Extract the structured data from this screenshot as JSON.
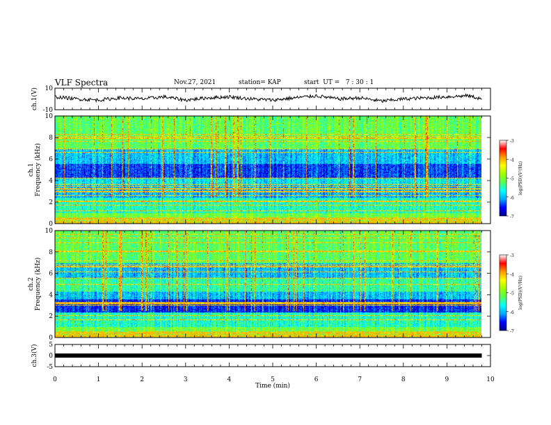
{
  "header": {
    "title": "VLF Spectra",
    "date": "Nov.27, 2021",
    "station": "station= KAP",
    "start": "start  UT =   7 : 30 : 1"
  },
  "colors": {
    "spectrum_scale": [
      "#00008b",
      "#0000ff",
      "#00aaff",
      "#00ffff",
      "#55ff55",
      "#a0ff00",
      "#ffff00",
      "#ff9900",
      "#ff0000",
      "#ffffff"
    ],
    "trace": "#000000",
    "axis": "#000000"
  },
  "chart_data": [
    {
      "type": "line",
      "name": "ch1-waveform",
      "ylabel": "ch.1(V)",
      "ylim": [
        -10,
        10
      ],
      "yticks": [
        "10",
        "-10"
      ],
      "xlim": [
        0,
        10
      ],
      "x": [
        0,
        0.5,
        1,
        1.5,
        2,
        2.5,
        3,
        3.5,
        4,
        4.5,
        5,
        5.5,
        6,
        6.5,
        7,
        7.5,
        8,
        8.5,
        9,
        9.5,
        9.8
      ],
      "y": [
        2,
        0,
        -1,
        1,
        0,
        2,
        -1,
        1,
        2,
        0,
        -1,
        1,
        3,
        0,
        1,
        -2,
        0,
        1,
        2,
        3,
        0
      ]
    },
    {
      "type": "heatmap",
      "name": "ch1-spectrogram",
      "ylabel": "ch.1\nFrequency (kHz)",
      "ylim": [
        0,
        10
      ],
      "yticks": [
        "0",
        "2",
        "4",
        "6",
        "8",
        "10"
      ],
      "xlim": [
        0,
        10
      ],
      "colorbar": {
        "label": "log(PSD)(V²/Hz)",
        "range": [
          -7,
          -3
        ],
        "ticks": [
          "-3",
          "-4",
          "-5",
          "-6",
          "-7"
        ]
      }
    },
    {
      "type": "heatmap",
      "name": "ch2-spectrogram",
      "ylabel": "ch.2\nFrequency (kHz)",
      "ylim": [
        0,
        10
      ],
      "yticks": [
        "0",
        "2",
        "4",
        "6",
        "8",
        "10"
      ],
      "xlim": [
        0,
        10
      ],
      "colorbar": {
        "label": "log(PSD)(V²/Hz)",
        "range": [
          -7,
          -3
        ],
        "ticks": [
          "-3",
          "-4",
          "-5",
          "-6",
          "-7"
        ]
      }
    },
    {
      "type": "line",
      "name": "ch3-signal",
      "ylabel": "ch.3(V)",
      "ylim": [
        -5,
        5
      ],
      "yticks": [
        "5",
        "0",
        "-5"
      ],
      "xlim": [
        0,
        10
      ],
      "x": [
        0,
        9.8
      ],
      "y": [
        0,
        0
      ]
    }
  ],
  "xaxis": {
    "label": "Time (min)",
    "ticks": [
      "0",
      "1",
      "2",
      "3",
      "4",
      "5",
      "6",
      "7",
      "8",
      "9",
      "10"
    ]
  }
}
